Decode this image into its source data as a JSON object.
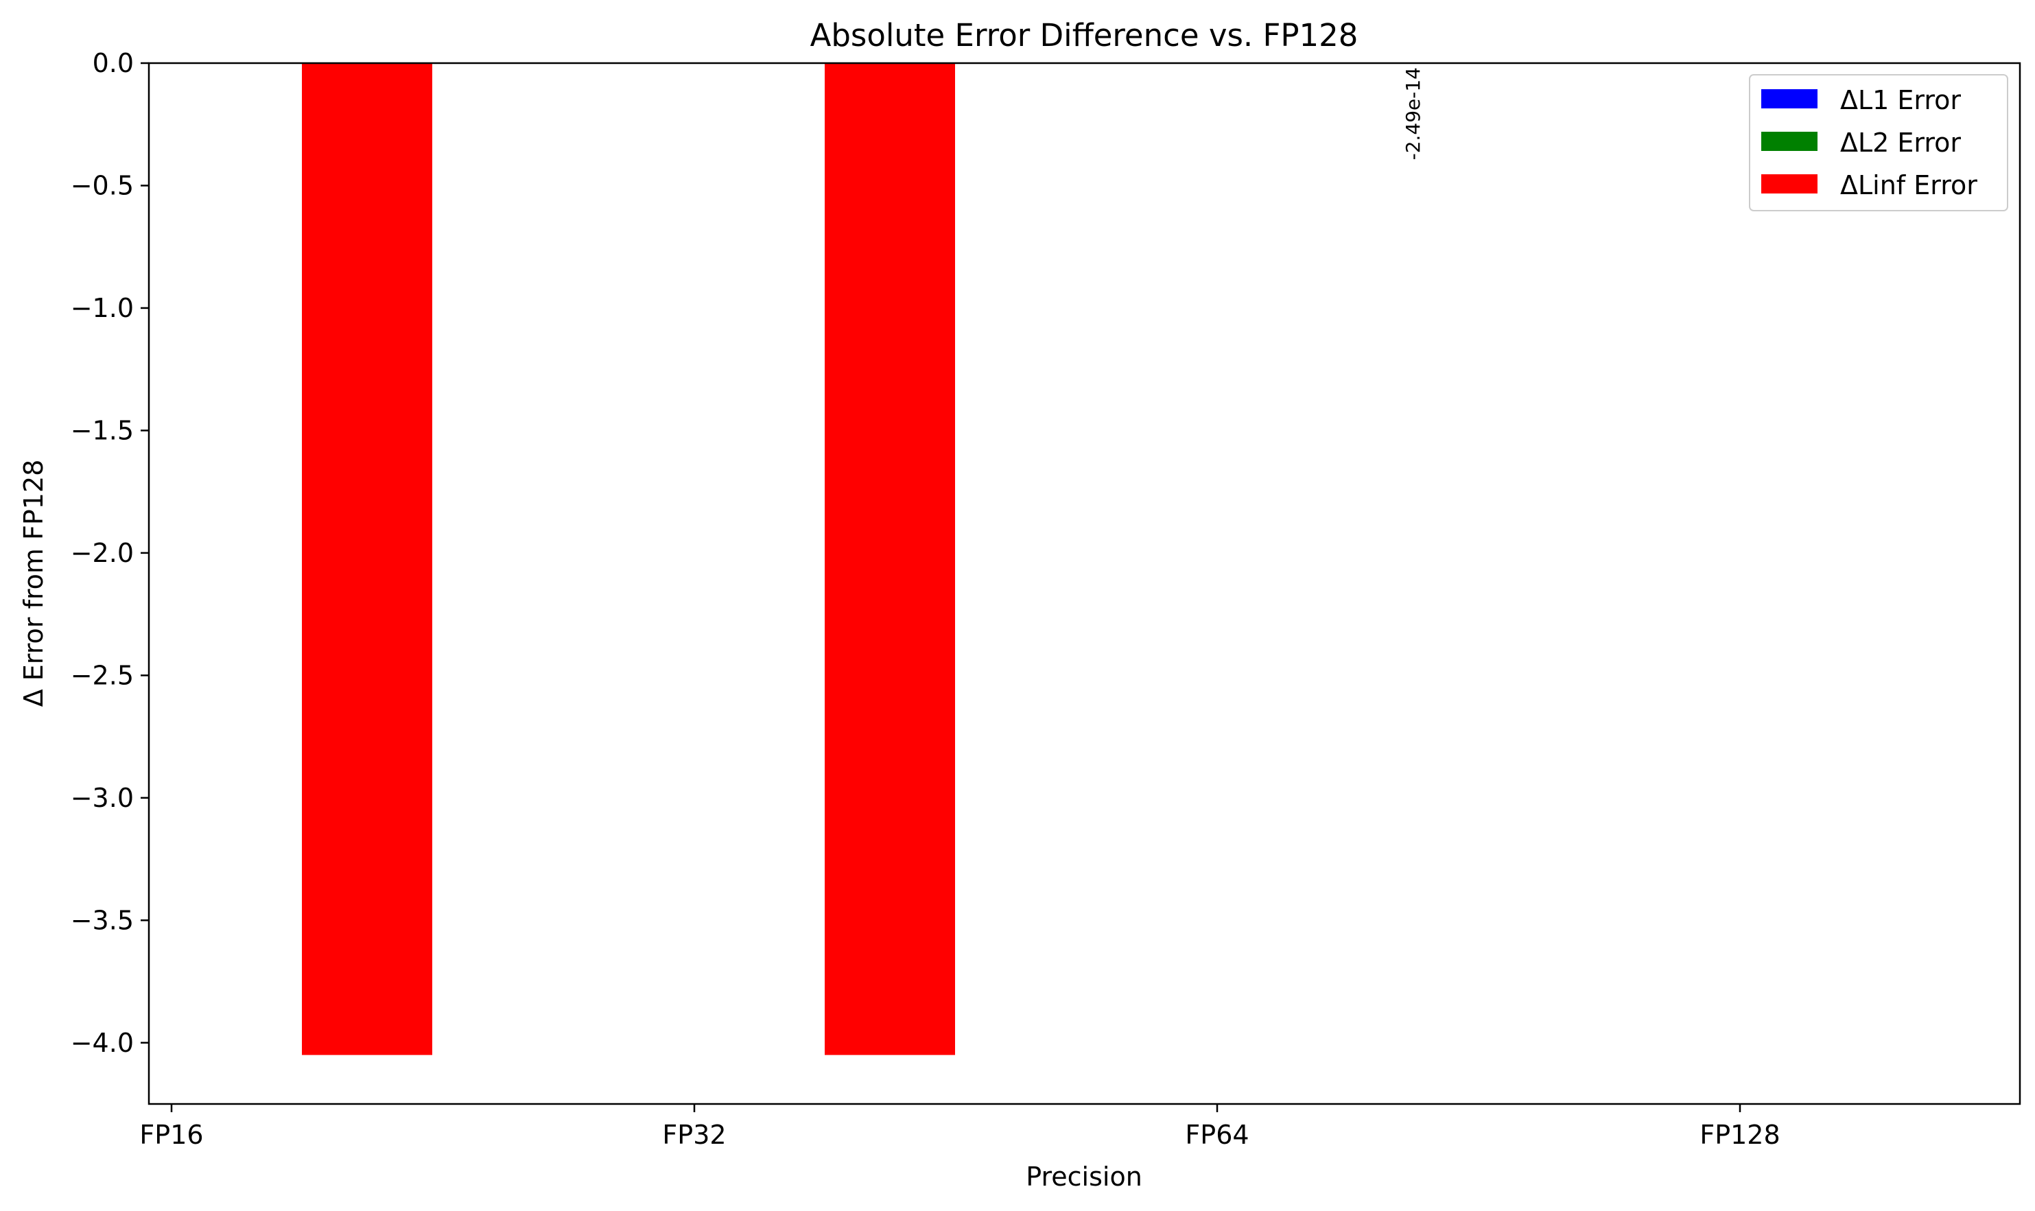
{
  "chart_data": {
    "type": "bar",
    "title": "Absolute Error Difference vs. FP128",
    "xlabel": "Precision",
    "ylabel": "Δ Error from FP128",
    "categories": [
      "FP16",
      "FP32",
      "FP64",
      "FP128"
    ],
    "ylim": [
      -4.25,
      0.0
    ],
    "yticks": [
      0.0,
      -0.5,
      -1.0,
      -1.5,
      -2.0,
      -2.5,
      -3.0,
      -3.5,
      -4.0
    ],
    "ytick_labels": [
      "0.0",
      "−0.5",
      "−1.0",
      "−1.5",
      "−2.0",
      "−2.5",
      "−3.0",
      "−3.5",
      "−4.0"
    ],
    "grid": false,
    "legend_position": "top-right",
    "series": [
      {
        "name": "ΔL1 Error",
        "color": "#0000ff",
        "values": [
          0,
          0,
          0,
          0
        ]
      },
      {
        "name": "ΔL2 Error",
        "color": "#008000",
        "values": [
          0,
          0,
          0,
          0
        ]
      },
      {
        "name": "ΔLinf Error",
        "color": "#ff0000",
        "values": [
          -4.05,
          -4.05,
          -2.49e-14,
          0
        ]
      }
    ],
    "annotations": [
      {
        "text": "-2.49e-14",
        "series": 2,
        "category": 2,
        "rotation": -90
      }
    ]
  }
}
